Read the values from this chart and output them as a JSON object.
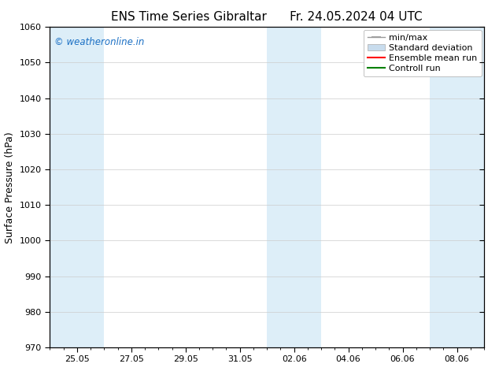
{
  "title_left": "ENS Time Series Gibraltar",
  "title_right": "Fr. 24.05.2024 04 UTC",
  "ylabel": "Surface Pressure (hPa)",
  "ylim": [
    970,
    1060
  ],
  "yticks": [
    970,
    980,
    990,
    1000,
    1010,
    1020,
    1030,
    1040,
    1050,
    1060
  ],
  "xtick_labels": [
    "25.05",
    "27.05",
    "29.05",
    "31.05",
    "02.06",
    "04.06",
    "06.06",
    "08.06"
  ],
  "shaded_bands": [
    {
      "x_start": 0.0,
      "x_end": 2.0
    },
    {
      "x_start": 8.0,
      "x_end": 10.0
    },
    {
      "x_start": 14.0,
      "x_end": 16.0
    }
  ],
  "shade_color": "#ddeef8",
  "background_color": "#ffffff",
  "watermark": "© weatheronline.in",
  "watermark_color": "#1a6fc4",
  "legend_items": [
    {
      "label": "min/max",
      "color": "#aaaaaa",
      "type": "errorbar"
    },
    {
      "label": "Standard deviation",
      "color": "#c8dced",
      "type": "bar"
    },
    {
      "label": "Ensemble mean run",
      "color": "#ff0000",
      "type": "line"
    },
    {
      "label": "Controll run",
      "color": "#008000",
      "type": "line"
    }
  ],
  "grid_color": "#cccccc",
  "tick_color": "#000000",
  "font_color": "#000000",
  "title_fontsize": 11,
  "axis_label_fontsize": 9,
  "tick_fontsize": 8,
  "legend_fontsize": 8,
  "xlim": [
    0.0,
    16.0
  ],
  "xtick_positions": [
    1,
    3,
    5,
    7,
    9,
    11,
    13,
    15
  ]
}
